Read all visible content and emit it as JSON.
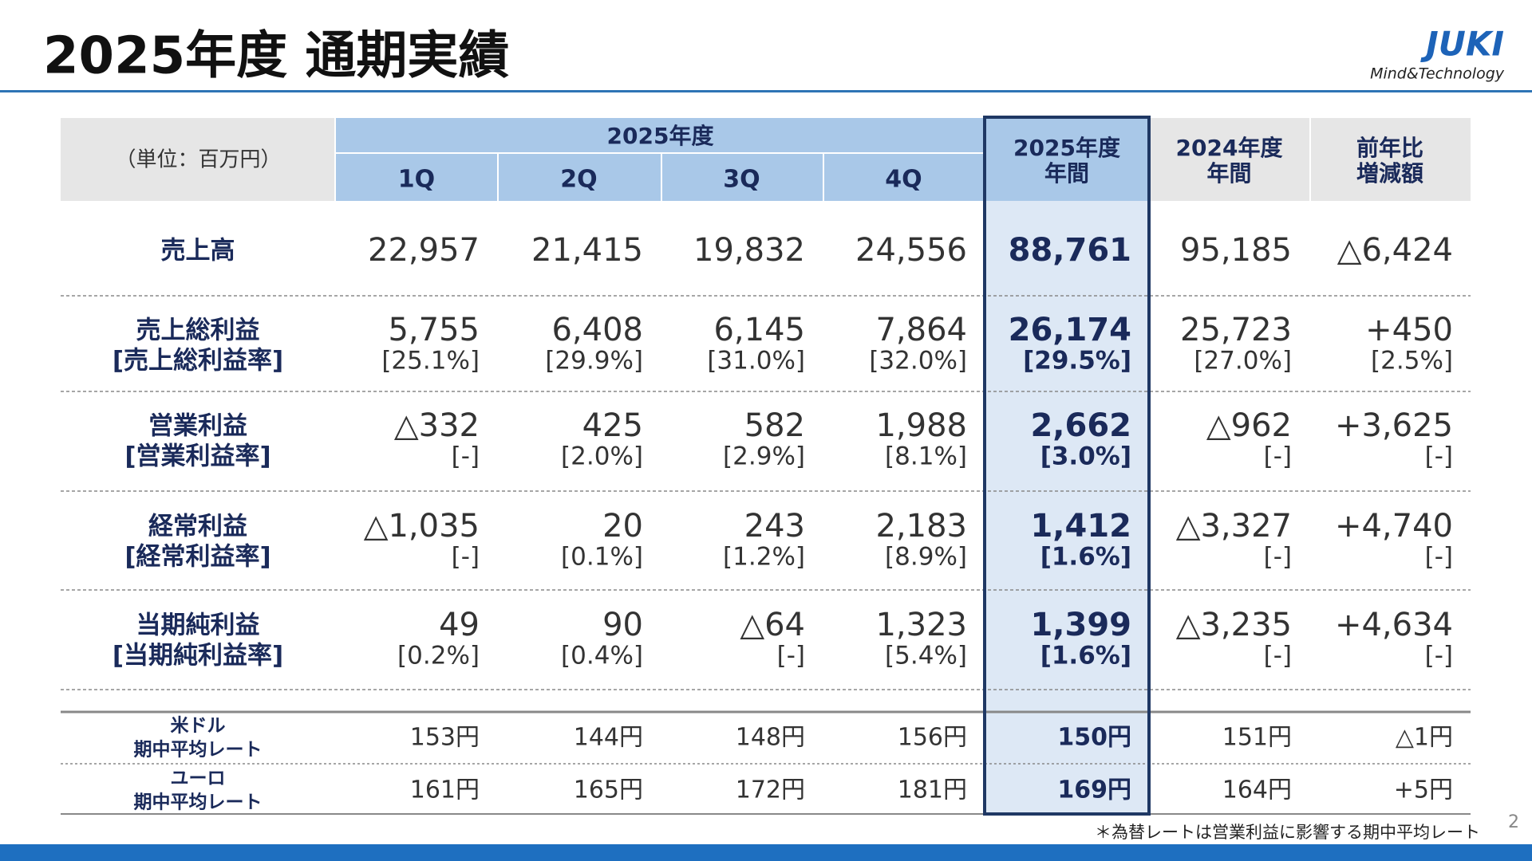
{
  "header": {
    "title": "2025年度 通期実績",
    "logo": "JUKI",
    "tagline": "Mind&Technology"
  },
  "table": {
    "unit": "（単位：百万円）",
    "group_header": "2025年度",
    "columns": [
      [
        "1Q"
      ],
      [
        "2Q"
      ],
      [
        "3Q"
      ],
      [
        "4Q"
      ],
      [
        "2025年度",
        "年間"
      ],
      [
        "2024年度",
        "年間"
      ],
      [
        "前年比",
        "増減額"
      ]
    ],
    "rows": [
      {
        "label": [
          "売上高"
        ],
        "cells": [
          [
            "22,957"
          ],
          [
            "21,415"
          ],
          [
            "19,832"
          ],
          [
            "24,556"
          ],
          [
            "88,761"
          ],
          [
            "95,185"
          ],
          [
            "△6,424"
          ]
        ]
      },
      {
        "label": [
          "売上総利益",
          "[売上総利益率]"
        ],
        "cells": [
          [
            "5,755",
            "[25.1%]"
          ],
          [
            "6,408",
            "[29.9%]"
          ],
          [
            "6,145",
            "[31.0%]"
          ],
          [
            "7,864",
            "[32.0%]"
          ],
          [
            "26,174",
            "[29.5%]"
          ],
          [
            "25,723",
            "[27.0%]"
          ],
          [
            "+450",
            "[2.5%]"
          ]
        ]
      },
      {
        "label": [
          "営業利益",
          "[営業利益率]"
        ],
        "cells": [
          [
            "△332",
            "[-]"
          ],
          [
            "425",
            "[2.0%]"
          ],
          [
            "582",
            "[2.9%]"
          ],
          [
            "1,988",
            "[8.1%]"
          ],
          [
            "2,662",
            "[3.0%]"
          ],
          [
            "△962",
            "[-]"
          ],
          [
            "+3,625",
            "[-]"
          ]
        ]
      },
      {
        "label": [
          "経常利益",
          "[経常利益率]"
        ],
        "cells": [
          [
            "△1,035",
            "[-]"
          ],
          [
            "20",
            "[0.1%]"
          ],
          [
            "243",
            "[1.2%]"
          ],
          [
            "2,183",
            "[8.9%]"
          ],
          [
            "1,412",
            "[1.6%]"
          ],
          [
            "△3,327",
            "[-]"
          ],
          [
            "+4,740",
            "[-]"
          ]
        ]
      },
      {
        "label": [
          "当期純利益",
          "[当期純利益率]"
        ],
        "cells": [
          [
            "49",
            "[0.2%]"
          ],
          [
            "90",
            "[0.4%]"
          ],
          [
            "△64",
            "[-]"
          ],
          [
            "1,323",
            "[5.4%]"
          ],
          [
            "1,399",
            "[1.6%]"
          ],
          [
            "△3,235",
            "[-]"
          ],
          [
            "+4,634",
            "[-]"
          ]
        ]
      }
    ],
    "rate_rows": [
      {
        "label": [
          "米ドル",
          "期中平均レート"
        ],
        "cells": [
          "153円",
          "144円",
          "148円",
          "156円",
          "150円",
          "151円",
          "△1円"
        ]
      },
      {
        "label": [
          "ユーロ",
          "期中平均レート"
        ],
        "cells": [
          "161円",
          "165円",
          "172円",
          "181円",
          "169円",
          "164円",
          "+5円"
        ]
      }
    ]
  },
  "footnote": "＊為替レートは営業利益に影響する期中平均レート",
  "page_number": "2"
}
